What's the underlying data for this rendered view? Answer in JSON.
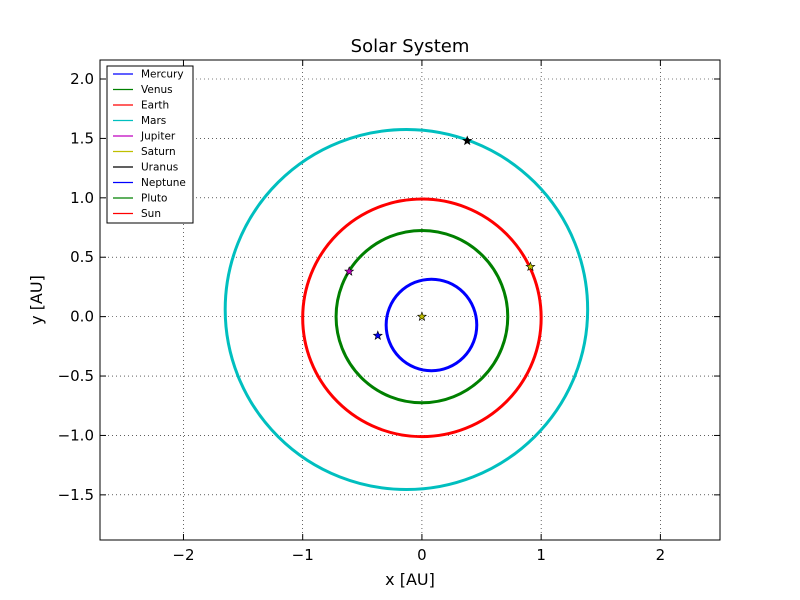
{
  "chart_data": {
    "type": "line",
    "title": "Solar System",
    "xlabel": "x [AU]",
    "ylabel": "y [AU]",
    "xlim": [
      -2.7,
      2.5
    ],
    "ylim": [
      -1.88,
      2.16
    ],
    "x_ticks": [
      -2,
      -1,
      0,
      1,
      2
    ],
    "x_tick_labels": [
      "−2",
      "−1",
      "0",
      "1",
      "2"
    ],
    "y_ticks": [
      -1.5,
      -1.0,
      -0.5,
      0.0,
      0.5,
      1.0,
      1.5,
      2.0
    ],
    "y_tick_labels": [
      "−1.5",
      "−1.0",
      "−0.5",
      "0.0",
      "0.5",
      "1.0",
      "1.5",
      "2.0"
    ],
    "grid": true,
    "legend_position": "top-left",
    "legend": [
      {
        "name": "Mercury",
        "color": "#0000ff"
      },
      {
        "name": "Venus",
        "color": "#008000"
      },
      {
        "name": "Earth",
        "color": "#ff0000"
      },
      {
        "name": "Mars",
        "color": "#00bfbf"
      },
      {
        "name": "Jupiter",
        "color": "#bf00bf"
      },
      {
        "name": "Saturn",
        "color": "#bfbf00"
      },
      {
        "name": "Uranus",
        "color": "#000000"
      },
      {
        "name": "Neptune",
        "color": "#0000ff"
      },
      {
        "name": "Pluto",
        "color": "#008000"
      },
      {
        "name": "Sun",
        "color": "#ff0000"
      }
    ],
    "orbits": [
      {
        "name": "Mercury",
        "color": "#0000ff",
        "cx": 0.08,
        "cy": -0.07,
        "rx": 0.38,
        "ry": 0.385
      },
      {
        "name": "Venus",
        "color": "#008000",
        "cx": 0.0,
        "cy": 0.0,
        "rx": 0.72,
        "ry": 0.725
      },
      {
        "name": "Earth",
        "color": "#ff0000",
        "cx": 0.0,
        "cy": -0.01,
        "rx": 1.0,
        "ry": 1.0
      },
      {
        "name": "Mars",
        "color": "#00bfbf",
        "cx": -0.13,
        "cy": 0.06,
        "rx": 1.52,
        "ry": 1.515
      }
    ],
    "markers": [
      {
        "name": "Sun",
        "x": 0.0,
        "y": 0.0,
        "color": "#bfbf00"
      },
      {
        "name": "Mercury",
        "x": -0.37,
        "y": -0.16,
        "color": "#0000ff"
      },
      {
        "name": "Venus",
        "x": -0.61,
        "y": 0.38,
        "color": "#bf00bf"
      },
      {
        "name": "Earth",
        "x": 0.91,
        "y": 0.42,
        "color": "#bfbf00"
      },
      {
        "name": "Mars",
        "x": 0.38,
        "y": 1.48,
        "color": "#000000"
      }
    ]
  }
}
